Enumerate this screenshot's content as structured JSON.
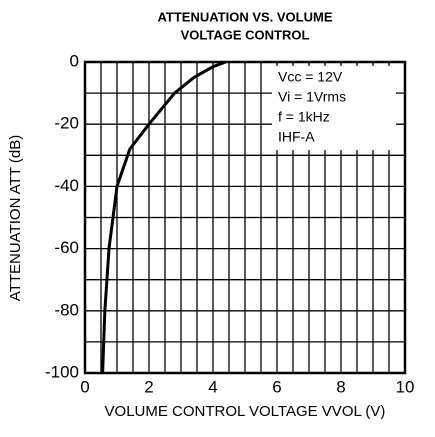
{
  "chart_data": {
    "type": "line",
    "title": [
      "ATTENUATION VS. VOLUME",
      "VOLTAGE CONTROL"
    ],
    "x_label": "VOLUME CONTROL VOLTAGE VVOL (V)",
    "y_label": "ATTENUATION ATT (dB)",
    "annotations": [
      "Vcc = 12V",
      "Vi = 1Vrms",
      "f = 1kHz",
      "IHF-A"
    ],
    "series": [
      {
        "name": "ATT",
        "color": "#000000",
        "x": [
          0.55,
          0.62,
          0.75,
          1.0,
          1.4,
          2.0,
          2.8,
          3.4,
          4.0,
          4.4
        ],
        "values": [
          -100,
          -80,
          -60,
          -40,
          -28,
          -20,
          -10,
          -5,
          -1.5,
          0
        ]
      }
    ],
    "xlim": [
      0,
      10
    ],
    "xticks": [
      0,
      2,
      4,
      6,
      8,
      10
    ],
    "xgrid": [
      0.5,
      1,
      1.5,
      2,
      2.5,
      3,
      3.5,
      4,
      4.5,
      5,
      5.5,
      6,
      6.5,
      7,
      7.5,
      8,
      8.5,
      9,
      9.5
    ],
    "ylim": [
      -100,
      0
    ],
    "yticks": [
      -100,
      -80,
      -60,
      -40,
      -20,
      0
    ],
    "ygrid": [
      -90,
      -80,
      -70,
      -60,
      -50,
      -40,
      -30,
      -20,
      -10
    ],
    "grid": true
  }
}
